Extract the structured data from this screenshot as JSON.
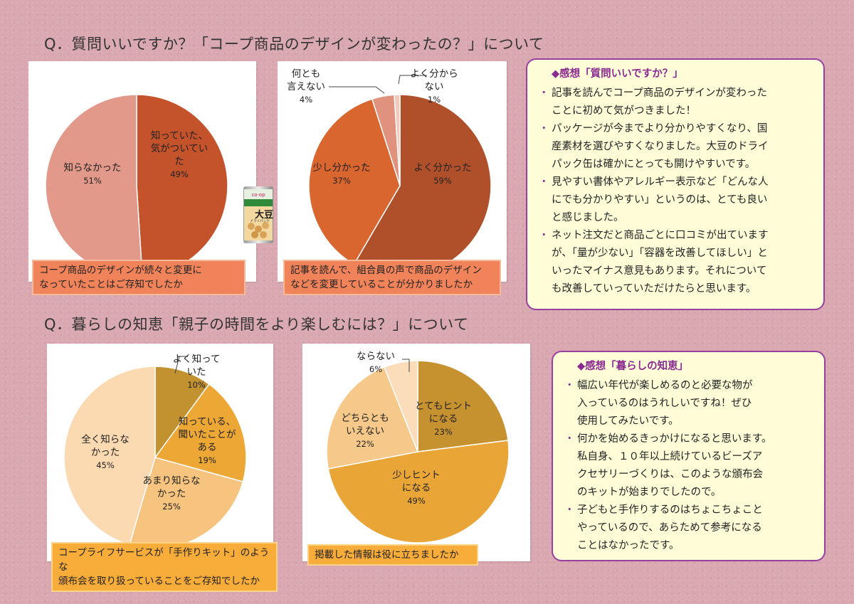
{
  "titles": {
    "q1": "Q．質問いいですか？「コープ商品のデザインが変わったの？」について",
    "q2": "Q．暮らしの知恵「親子の時間をより楽しむには？」について"
  },
  "can": {
    "logo": "co·op",
    "label": "大豆",
    "sub": "ドライパック"
  },
  "chart_data": [
    {
      "type": "pie",
      "caption": [
        "コープ商品のデザインが続々と変更に",
        "なっていたことはご存知でしたか"
      ],
      "slices": [
        {
          "label": [
            "知っていた、",
            "気がついてい",
            "た"
          ],
          "value": 49,
          "pct": "49%",
          "color": "#c4522b"
        },
        {
          "label": [
            "知らなかった"
          ],
          "value": 51,
          "pct": "51%",
          "color": "#e3998a"
        }
      ]
    },
    {
      "type": "pie",
      "caption": [
        "記事を読んで、組合員の声で商品のデザイン",
        "などを変更していることが分かりましたか"
      ],
      "slices": [
        {
          "label": [
            "よく分かった"
          ],
          "value": 59,
          "pct": "59%",
          "color": "#b0502a"
        },
        {
          "label": [
            "少し分かった"
          ],
          "value": 37,
          "pct": "37%",
          "color": "#d9652f"
        },
        {
          "label": [
            "何とも",
            "言えない"
          ],
          "value": 4,
          "pct": "4%",
          "color": "#e0927e"
        },
        {
          "label": [
            "よく分から",
            "ない"
          ],
          "value": 1,
          "pct": "1%",
          "color": "#f1c8bc"
        }
      ]
    },
    {
      "type": "pie",
      "caption": [
        "コープライフサービスが「手作りキット」のような",
        "頒布会を取り扱っていることをご存知でしたか"
      ],
      "slices": [
        {
          "label": [
            "よく知って",
            "いた"
          ],
          "value": 10,
          "pct": "10%",
          "color": "#c29130"
        },
        {
          "label": [
            "知っている、",
            "聞いたことが",
            "ある"
          ],
          "value": 19,
          "pct": "19%",
          "color": "#eca735"
        },
        {
          "label": [
            "あまり知らな",
            "かった"
          ],
          "value": 25,
          "pct": "25%",
          "color": "#f6c47e"
        },
        {
          "label": [
            "全く知らな",
            "かった"
          ],
          "value": 45,
          "pct": "45%",
          "color": "#fbd9b1"
        }
      ]
    },
    {
      "type": "pie",
      "caption": [
        "掲載した情報は役に立ちましたか"
      ],
      "slices": [
        {
          "label": [
            "とてもヒント",
            "になる"
          ],
          "value": 23,
          "pct": "23%",
          "color": "#c6922f"
        },
        {
          "label": [
            "少しヒント",
            "になる"
          ],
          "value": 49,
          "pct": "49%",
          "color": "#e9a637"
        },
        {
          "label": [
            "どちらとも",
            "いえない"
          ],
          "value": 22,
          "pct": "22%",
          "color": "#f6c88a"
        },
        {
          "label": [
            "ならない"
          ],
          "value": 6,
          "pct": "6%",
          "color": "#fbdcbb"
        }
      ]
    }
  ],
  "callouts": {
    "c1": {
      "title": "◆感想「質問いいですか？」",
      "items": [
        [
          "記事を読んでコープ商品のデザインが変わった",
          "ことに初めて気がつきました！"
        ],
        [
          "パッケージが今までより分かりやすくなり、国",
          "産素材を選びやすくなりました。大豆のドライ",
          "パック缶は確かにとっても開けやすいです。"
        ],
        [
          "見やすい書体やアレルギー表示など「どんな人",
          "にでも分かりやすい」というのは、とても良い",
          "と感じました。"
        ],
        [
          "ネット注文だと商品ごとに口コミが出ています",
          "が、「量が少ない」「容器を改善してほしい」と",
          "いったマイナス意見もあります。それについて",
          "も改善していっていただけたらと思います。"
        ]
      ]
    },
    "c2": {
      "title": "◆感想「暮らしの知恵」",
      "items": [
        [
          "幅広い年代が楽しめるのと必要な物が",
          "入っているのはうれしいですね！ぜひ",
          "使用してみたいです。"
        ],
        [
          "何かを始めるきっかけになると思います。",
          "私自身、１０年以上続けているビーズア",
          "クセサリーづくりは、このような頒布会",
          "のキットが始まりでしたので。"
        ],
        [
          "子どもと手作りするのはちょこちょこと",
          "やっているので、あらためて参考になる",
          "ことはなかったです。"
        ]
      ]
    }
  }
}
